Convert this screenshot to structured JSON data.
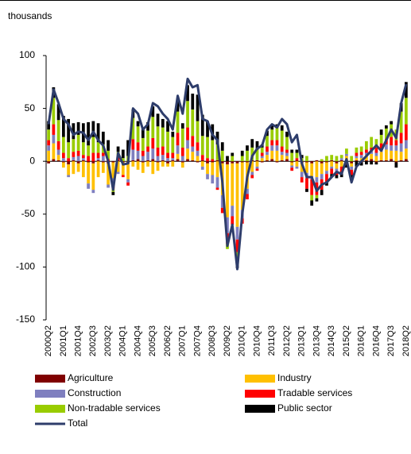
{
  "chart_data": {
    "type": "bar",
    "stacked": true,
    "y_label": "thousands",
    "legend": "bottom",
    "ylim": [
      -150,
      100
    ],
    "yticks": [
      100,
      50,
      0,
      -50,
      -100,
      -150
    ],
    "categories": [
      "2000Q2",
      null,
      null,
      "2001Q1",
      null,
      null,
      "2001Q4",
      null,
      null,
      "2002Q3",
      null,
      null,
      "2003Q2",
      null,
      null,
      "2004Q1",
      null,
      null,
      "2004Q4",
      null,
      null,
      "2005Q3",
      null,
      null,
      "2006Q2",
      null,
      null,
      "2007Q1",
      null,
      null,
      "2007Q4",
      null,
      null,
      "2008Q3",
      null,
      null,
      "2009Q2",
      null,
      null,
      "2010Q1",
      null,
      null,
      "2010Q4",
      null,
      null,
      "2011Q3",
      null,
      null,
      "2012Q2",
      null,
      null,
      "2013Q1",
      null,
      null,
      "2013Q4",
      null,
      null,
      "2014Q3",
      null,
      null,
      "2015Q2",
      null,
      null,
      "2016Q1",
      null,
      null,
      "2016Q4",
      null,
      null,
      "2017Q3",
      null,
      null,
      "2018Q2"
    ],
    "series": [
      {
        "name": "Agriculture",
        "color": "#800000",
        "values": [
          -2,
          2,
          1,
          -1,
          -3,
          1,
          -2,
          1,
          -1,
          -2,
          1,
          -1,
          -2,
          -1,
          1,
          -1,
          -2,
          1,
          2,
          -1,
          1,
          2,
          -1,
          1,
          -2,
          1,
          2,
          -1,
          2,
          1,
          -1,
          1,
          -2,
          -1,
          1,
          -2,
          -3,
          -2,
          -2,
          -1,
          -1,
          1,
          1,
          -1,
          1,
          2,
          -1,
          1,
          2,
          -1,
          1,
          -2,
          -1,
          -2,
          1,
          -2,
          -1,
          1,
          -2,
          1,
          -1,
          -2,
          1,
          -1,
          1,
          2,
          -1,
          1,
          1,
          2,
          -1,
          1,
          2
        ]
      },
      {
        "name": "Industry",
        "color": "#ffc000",
        "values": [
          10,
          15,
          5,
          -5,
          -10,
          -12,
          -8,
          -15,
          -20,
          -25,
          -15,
          -10,
          -20,
          -15,
          -10,
          -12,
          -15,
          -5,
          -8,
          -10,
          -5,
          -12,
          -8,
          -5,
          -3,
          -5,
          5,
          -5,
          10,
          8,
          5,
          -5,
          -10,
          -12,
          -15,
          -30,
          -50,
          -40,
          -60,
          -45,
          -25,
          -10,
          -5,
          3,
          5,
          8,
          10,
          5,
          3,
          -3,
          -5,
          -8,
          -10,
          -12,
          -15,
          -10,
          -8,
          -5,
          -5,
          -5,
          5,
          -3,
          2,
          3,
          5,
          5,
          5,
          8,
          10,
          8,
          10,
          8,
          10
        ]
      },
      {
        "name": "Construction",
        "color": "#7f7fbf",
        "values": [
          5,
          8,
          5,
          3,
          -2,
          3,
          5,
          2,
          -5,
          -3,
          2,
          5,
          -3,
          -5,
          -2,
          0,
          -3,
          10,
          8,
          5,
          8,
          10,
          5,
          5,
          3,
          2,
          8,
          5,
          8,
          5,
          5,
          -3,
          -5,
          -8,
          -10,
          -12,
          -15,
          -10,
          -12,
          -8,
          -5,
          -3,
          -2,
          2,
          3,
          5,
          5,
          3,
          3,
          -2,
          -2,
          -5,
          -5,
          -3,
          -5,
          -5,
          -3,
          -2,
          -3,
          2,
          2,
          -3,
          2,
          3,
          2,
          3,
          3,
          3,
          5,
          5,
          5,
          8,
          8
        ]
      },
      {
        "name": "Tradable services",
        "color": "#ff0000",
        "values": [
          5,
          10,
          8,
          5,
          3,
          5,
          5,
          3,
          5,
          8,
          5,
          3,
          2,
          -5,
          3,
          -2,
          -3,
          10,
          8,
          5,
          5,
          10,
          8,
          8,
          5,
          5,
          12,
          8,
          12,
          10,
          8,
          5,
          3,
          2,
          -2,
          -5,
          -10,
          -8,
          -12,
          -5,
          -5,
          -3,
          -2,
          3,
          5,
          5,
          5,
          5,
          3,
          -3,
          2,
          -5,
          -10,
          -15,
          -12,
          -10,
          -8,
          -5,
          -3,
          -5,
          -2,
          -5,
          3,
          3,
          3,
          3,
          5,
          5,
          5,
          8,
          5,
          10,
          15
        ]
      },
      {
        "name": "Non-tradable services",
        "color": "#99cc00",
        "values": [
          10,
          25,
          20,
          15,
          15,
          12,
          15,
          12,
          10,
          15,
          10,
          8,
          8,
          -3,
          5,
          3,
          5,
          20,
          15,
          12,
          15,
          20,
          20,
          18,
          20,
          15,
          20,
          18,
          25,
          25,
          20,
          18,
          20,
          18,
          15,
          10,
          -5,
          5,
          -10,
          5,
          10,
          12,
          10,
          5,
          10,
          10,
          12,
          15,
          12,
          8,
          5,
          3,
          5,
          -5,
          -3,
          2,
          5,
          5,
          5,
          3,
          5,
          5,
          5,
          5,
          8,
          10,
          8,
          8,
          10,
          12,
          10,
          20,
          25
        ]
      },
      {
        "name": "Public sector",
        "color": "#000000",
        "values": [
          8,
          10,
          15,
          20,
          22,
          15,
          12,
          18,
          22,
          15,
          18,
          12,
          10,
          -3,
          5,
          8,
          15,
          8,
          5,
          10,
          8,
          10,
          12,
          8,
          10,
          5,
          10,
          5,
          15,
          15,
          25,
          20,
          15,
          15,
          12,
          8,
          5,
          3,
          -5,
          5,
          5,
          8,
          8,
          3,
          5,
          5,
          3,
          5,
          5,
          3,
          3,
          3,
          -3,
          -5,
          -3,
          -5,
          -3,
          -3,
          -3,
          -5,
          -3,
          -5,
          -5,
          -3,
          -3,
          -3,
          -2,
          5,
          3,
          3,
          -5,
          8,
          15
        ]
      },
      {
        "name": "Total",
        "color": "#2e3d6b",
        "type": "line",
        "values": [
          35,
          68,
          55,
          40,
          35,
          25,
          28,
          27,
          20,
          28,
          20,
          15,
          0,
          -27,
          8,
          -3,
          -2,
          50,
          45,
          30,
          35,
          55,
          52,
          45,
          40,
          30,
          62,
          45,
          78,
          70,
          72,
          40,
          38,
          25,
          20,
          -20,
          -80,
          -60,
          -102,
          -50,
          -15,
          5,
          12,
          15,
          30,
          35,
          32,
          40,
          35,
          18,
          25,
          -2,
          -15,
          -15,
          -28,
          -22,
          -20,
          -15,
          -10,
          -12,
          2,
          -20,
          -5,
          0,
          5,
          10,
          15,
          10,
          20,
          30,
          22,
          55,
          73
        ]
      }
    ]
  }
}
